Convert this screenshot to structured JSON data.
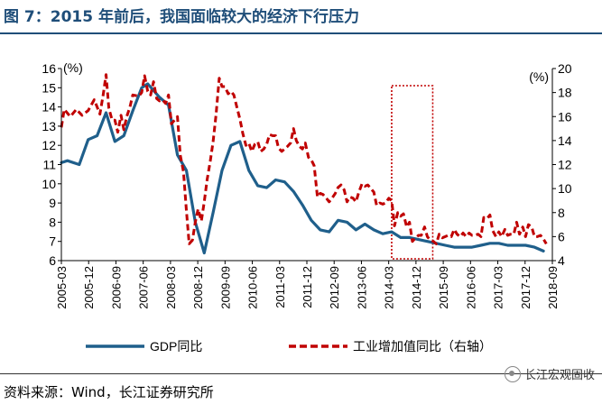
{
  "header": {
    "title": "图 7：2015 年前后，我国面临较大的经济下行压力"
  },
  "footer": {
    "source": "资料来源：Wind，长江证券研究所",
    "watermark": "长江宏观固收"
  },
  "colors": {
    "gdp": "#1f5f8b",
    "industry": "#c00000",
    "title": "#1f4e79"
  },
  "chart_data": {
    "type": "line",
    "title": "",
    "left_axis": {
      "label": "(%)",
      "ylim": [
        6,
        16
      ],
      "ticks": [
        6,
        7,
        8,
        9,
        10,
        11,
        12,
        13,
        14,
        15,
        16
      ]
    },
    "right_axis": {
      "label": "(%)",
      "ylim": [
        4,
        20
      ],
      "ticks": [
        4,
        6,
        8,
        10,
        12,
        14,
        16,
        18,
        20
      ]
    },
    "x_ticks": [
      "2005-03",
      "2005-12",
      "2006-09",
      "2007-06",
      "2008-03",
      "2008-12",
      "2009-09",
      "2010-06",
      "2011-03",
      "2011-12",
      "2012-09",
      "2013-06",
      "2014-03",
      "2014-12",
      "2015-09",
      "2016-06",
      "2017-03",
      "2017-12",
      "2018-09"
    ],
    "x_range": [
      2005.0,
      2018.75
    ],
    "highlight_box": {
      "x_from": 2014.25,
      "x_to": 2015.4,
      "style": "dotted red"
    },
    "series": [
      {
        "name": "GDP同比",
        "axis": "left",
        "style": "solid",
        "points": [
          [
            2005.0,
            11.1
          ],
          [
            2005.17,
            11.2
          ],
          [
            2005.5,
            11.0
          ],
          [
            2005.75,
            12.3
          ],
          [
            2006.0,
            12.5
          ],
          [
            2006.25,
            13.7
          ],
          [
            2006.5,
            12.2
          ],
          [
            2006.75,
            12.5
          ],
          [
            2007.0,
            13.8
          ],
          [
            2007.25,
            15.0
          ],
          [
            2007.42,
            15.2
          ],
          [
            2007.75,
            14.5
          ],
          [
            2008.0,
            14.1
          ],
          [
            2008.25,
            11.5
          ],
          [
            2008.5,
            10.7
          ],
          [
            2008.75,
            8.0
          ],
          [
            2009.0,
            6.4
          ],
          [
            2009.25,
            8.5
          ],
          [
            2009.5,
            10.7
          ],
          [
            2009.75,
            12.0
          ],
          [
            2010.0,
            12.2
          ],
          [
            2010.25,
            10.7
          ],
          [
            2010.5,
            9.9
          ],
          [
            2010.75,
            9.8
          ],
          [
            2011.0,
            10.2
          ],
          [
            2011.25,
            10.1
          ],
          [
            2011.5,
            9.6
          ],
          [
            2011.75,
            8.9
          ],
          [
            2012.0,
            8.1
          ],
          [
            2012.25,
            7.6
          ],
          [
            2012.5,
            7.5
          ],
          [
            2012.75,
            8.1
          ],
          [
            2013.0,
            8.0
          ],
          [
            2013.25,
            7.6
          ],
          [
            2013.5,
            7.9
          ],
          [
            2013.75,
            7.6
          ],
          [
            2014.0,
            7.4
          ],
          [
            2014.25,
            7.5
          ],
          [
            2014.5,
            7.2
          ],
          [
            2014.75,
            7.2
          ],
          [
            2015.0,
            7.1
          ],
          [
            2015.25,
            7.0
          ],
          [
            2015.5,
            6.9
          ],
          [
            2015.75,
            6.8
          ],
          [
            2016.0,
            6.7
          ],
          [
            2016.25,
            6.7
          ],
          [
            2016.5,
            6.7
          ],
          [
            2016.75,
            6.8
          ],
          [
            2017.0,
            6.9
          ],
          [
            2017.25,
            6.9
          ],
          [
            2017.5,
            6.8
          ],
          [
            2017.75,
            6.8
          ],
          [
            2018.0,
            6.8
          ],
          [
            2018.25,
            6.7
          ],
          [
            2018.5,
            6.5
          ]
        ]
      },
      {
        "name": "工业增加值同比（右轴）",
        "axis": "right",
        "style": "dashed",
        "points": [
          [
            2005.0,
            15.1
          ],
          [
            2005.08,
            16.6
          ],
          [
            2005.25,
            16.0
          ],
          [
            2005.42,
            16.6
          ],
          [
            2005.58,
            16.1
          ],
          [
            2005.75,
            16.5
          ],
          [
            2005.92,
            17.4
          ],
          [
            2006.0,
            16.8
          ],
          [
            2006.08,
            16.2
          ],
          [
            2006.17,
            17.8
          ],
          [
            2006.25,
            19.5
          ],
          [
            2006.33,
            16.7
          ],
          [
            2006.42,
            15.7
          ],
          [
            2006.5,
            15.7
          ],
          [
            2006.58,
            14.7
          ],
          [
            2006.67,
            16.1
          ],
          [
            2006.75,
            14.9
          ],
          [
            2006.83,
            16.0
          ],
          [
            2006.92,
            16.8
          ],
          [
            2007.0,
            17.8
          ],
          [
            2007.17,
            17.7
          ],
          [
            2007.25,
            18.0
          ],
          [
            2007.33,
            19.4
          ],
          [
            2007.42,
            18.1
          ],
          [
            2007.5,
            17.8
          ],
          [
            2007.58,
            18.9
          ],
          [
            2007.67,
            17.5
          ],
          [
            2007.75,
            17.3
          ],
          [
            2007.83,
            17.4
          ],
          [
            2007.92,
            17.1
          ],
          [
            2008.0,
            17.8
          ],
          [
            2008.08,
            15.4
          ],
          [
            2008.17,
            15.7
          ],
          [
            2008.25,
            16.0
          ],
          [
            2008.33,
            12.8
          ],
          [
            2008.42,
            11.4
          ],
          [
            2008.5,
            8.2
          ],
          [
            2008.58,
            5.4
          ],
          [
            2008.67,
            5.7
          ],
          [
            2008.75,
            7.2
          ],
          [
            2008.83,
            8.3
          ],
          [
            2008.92,
            7.3
          ],
          [
            2009.0,
            8.9
          ],
          [
            2009.08,
            10.7
          ],
          [
            2009.17,
            12.3
          ],
          [
            2009.25,
            13.9
          ],
          [
            2009.33,
            16.1
          ],
          [
            2009.42,
            19.2
          ],
          [
            2009.5,
            18.5
          ],
          [
            2009.58,
            18.5
          ],
          [
            2009.67,
            17.9
          ],
          [
            2009.75,
            18.1
          ],
          [
            2009.83,
            17.8
          ],
          [
            2009.92,
            16.7
          ],
          [
            2010.0,
            15.8
          ],
          [
            2010.08,
            14.6
          ],
          [
            2010.17,
            13.6
          ],
          [
            2010.25,
            13.8
          ],
          [
            2010.33,
            13.1
          ],
          [
            2010.42,
            13.7
          ],
          [
            2010.5,
            13.9
          ],
          [
            2010.58,
            13.1
          ],
          [
            2010.67,
            13.3
          ],
          [
            2010.75,
            13.7
          ],
          [
            2010.83,
            14.5
          ],
          [
            2010.92,
            14.4
          ],
          [
            2011.0,
            14.4
          ],
          [
            2011.08,
            13.4
          ],
          [
            2011.17,
            13.1
          ],
          [
            2011.25,
            13.3
          ],
          [
            2011.33,
            13.5
          ],
          [
            2011.42,
            13.8
          ],
          [
            2011.5,
            15.0
          ],
          [
            2011.58,
            14.0
          ],
          [
            2011.67,
            13.5
          ],
          [
            2011.75,
            13.3
          ],
          [
            2011.83,
            13.8
          ],
          [
            2011.92,
            12.6
          ],
          [
            2012.0,
            12.4
          ],
          [
            2012.08,
            11.9
          ],
          [
            2012.17,
            9.3
          ],
          [
            2012.25,
            9.6
          ],
          [
            2012.33,
            9.5
          ],
          [
            2012.42,
            9.2
          ],
          [
            2012.5,
            8.9
          ],
          [
            2012.58,
            9.2
          ],
          [
            2012.67,
            9.6
          ],
          [
            2012.75,
            10.1
          ],
          [
            2012.83,
            10.3
          ],
          [
            2012.92,
            9.9
          ],
          [
            2013.0,
            8.9
          ],
          [
            2013.08,
            9.3
          ],
          [
            2013.17,
            9.2
          ],
          [
            2013.25,
            8.9
          ],
          [
            2013.33,
            9.7
          ],
          [
            2013.42,
            10.4
          ],
          [
            2013.5,
            10.2
          ],
          [
            2013.58,
            10.3
          ],
          [
            2013.67,
            10.0
          ],
          [
            2013.75,
            9.7
          ],
          [
            2013.83,
            8.6
          ],
          [
            2013.92,
            8.8
          ],
          [
            2014.0,
            8.7
          ],
          [
            2014.08,
            8.8
          ],
          [
            2014.17,
            9.2
          ],
          [
            2014.25,
            9.0
          ],
          [
            2014.33,
            6.9
          ],
          [
            2014.42,
            8.0
          ],
          [
            2014.5,
            7.7
          ],
          [
            2014.58,
            7.9
          ],
          [
            2014.67,
            6.8
          ],
          [
            2014.75,
            7.2
          ],
          [
            2014.83,
            5.6
          ],
          [
            2014.92,
            5.9
          ],
          [
            2015.0,
            6.1
          ],
          [
            2015.08,
            6.1
          ],
          [
            2015.17,
            6.8
          ],
          [
            2015.25,
            6.0
          ],
          [
            2015.33,
            5.7
          ],
          [
            2015.42,
            5.6
          ],
          [
            2015.5,
            5.4
          ],
          [
            2015.58,
            6.2
          ],
          [
            2015.67,
            5.9
          ],
          [
            2015.75,
            6.0
          ],
          [
            2015.83,
            6.1
          ],
          [
            2015.92,
            6.0
          ],
          [
            2016.0,
            6.6
          ],
          [
            2016.08,
            6.2
          ],
          [
            2016.17,
            6.0
          ],
          [
            2016.25,
            6.3
          ],
          [
            2016.33,
            6.0
          ],
          [
            2016.42,
            6.3
          ],
          [
            2016.5,
            6.1
          ],
          [
            2016.58,
            6.1
          ],
          [
            2016.67,
            6.2
          ],
          [
            2016.75,
            6.0
          ],
          [
            2016.83,
            7.6
          ],
          [
            2016.92,
            7.5
          ],
          [
            2017.0,
            7.8
          ],
          [
            2017.08,
            6.5
          ],
          [
            2017.17,
            6.0
          ],
          [
            2017.25,
            6.4
          ],
          [
            2017.33,
            6.0
          ],
          [
            2017.42,
            6.6
          ],
          [
            2017.5,
            6.1
          ],
          [
            2017.58,
            6.2
          ],
          [
            2017.67,
            6.2
          ],
          [
            2017.75,
            7.2
          ],
          [
            2017.83,
            6.2
          ],
          [
            2017.92,
            6.8
          ],
          [
            2018.0,
            6.0
          ],
          [
            2018.08,
            7.0
          ],
          [
            2018.17,
            6.8
          ],
          [
            2018.25,
            6.0
          ],
          [
            2018.33,
            6.0
          ],
          [
            2018.42,
            6.1
          ],
          [
            2018.5,
            5.8
          ],
          [
            2018.58,
            5.4
          ]
        ]
      }
    ],
    "legend": [
      {
        "label": "GDP同比",
        "style": "solid"
      },
      {
        "label": "工业增加值同比（右轴）",
        "style": "dashed"
      }
    ]
  }
}
